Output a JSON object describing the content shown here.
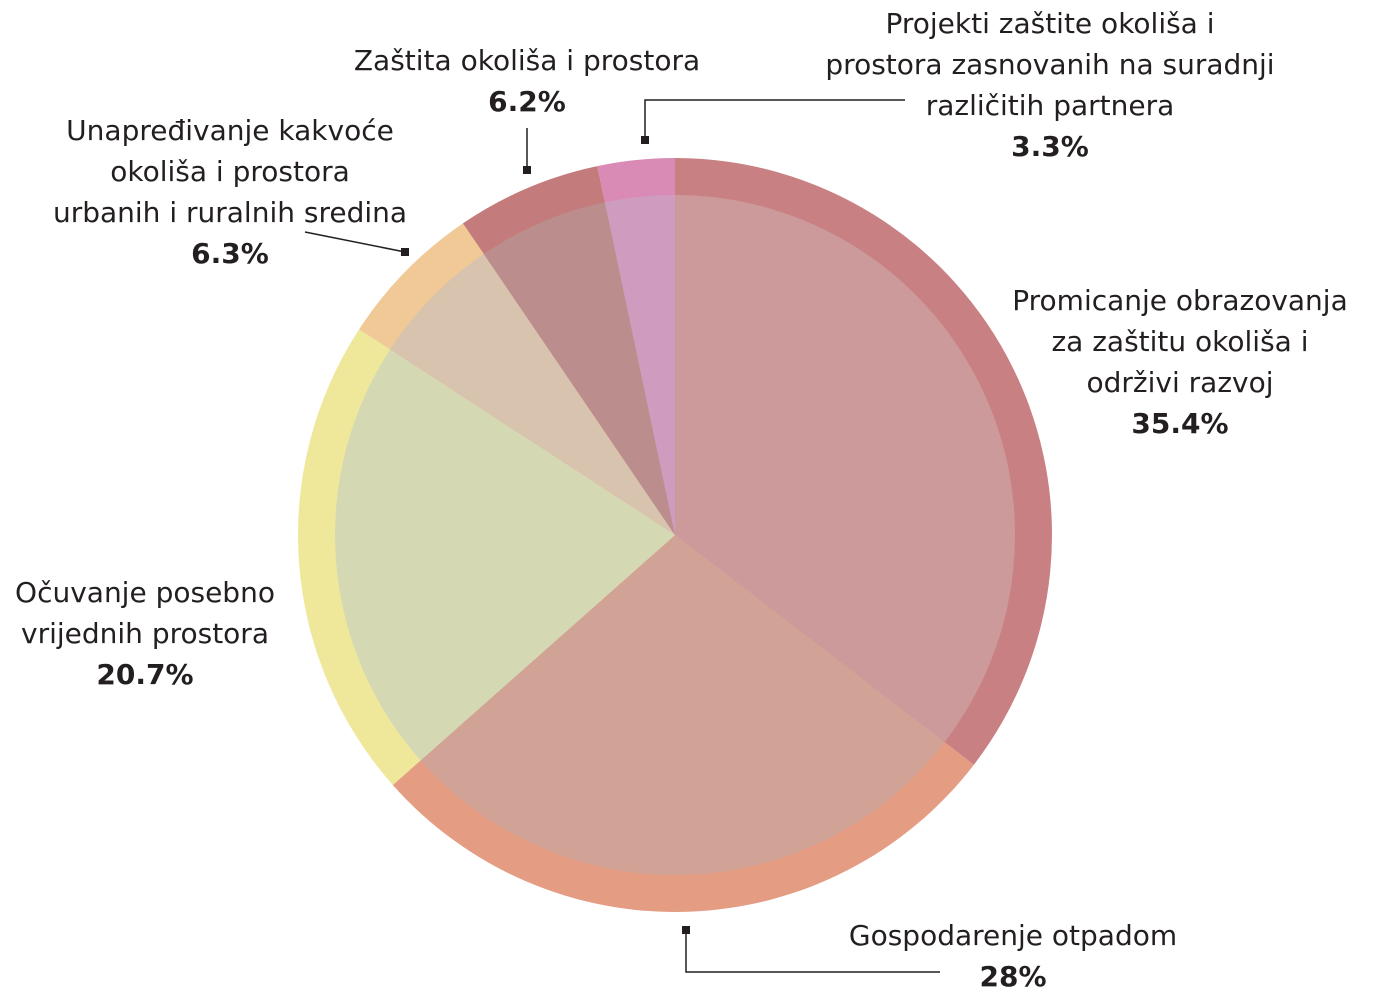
{
  "chart_data": {
    "type": "pie",
    "categories": [
      "Promicanje obrazovanja\nza zaštitu okoliša i\nodrživi razvoj",
      "Gospodarenje otpadom",
      "Očuvanje posebno\nvrijednih prostora",
      "Unapređivanje kakvoće\nokoliša i prostora\nurbanih i ruralnih sredina",
      "Zaštita okoliša i prostora",
      "Projekti zaštite okoliša i\nprostora zasnovanih na suradnji\nrazličitih partnera"
    ],
    "values": [
      35.4,
      28,
      20.7,
      6.3,
      6.2,
      3.3
    ],
    "value_labels": [
      "35.4%",
      "28%",
      "20.7%",
      "6.3%",
      "6.2%",
      "3.3%"
    ],
    "colors": [
      "#c98082",
      "#e49c82",
      "#efe89b",
      "#f0c996",
      "#c47b7b",
      "#d98ab5"
    ],
    "inner_colors": [
      "#cc9a9b",
      "#d1a396",
      "#d4d9b3",
      "#d7c3ae",
      "#bb8d8d",
      "#ce9cbe"
    ]
  }
}
